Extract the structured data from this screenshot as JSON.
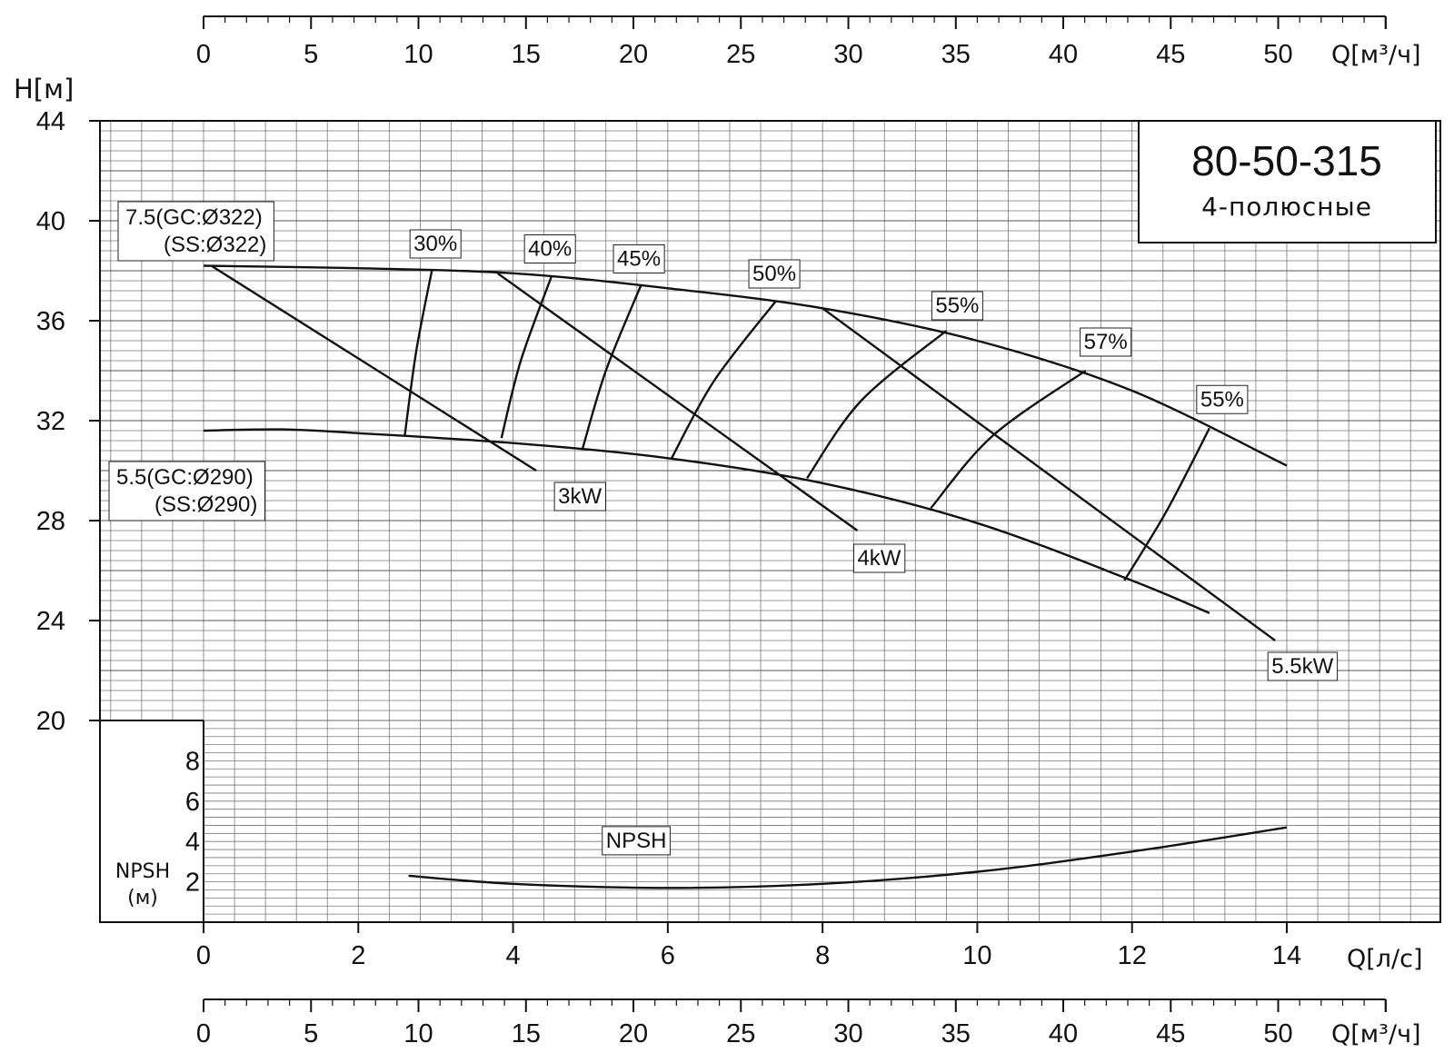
{
  "chart_data": {
    "type": "line",
    "title": "80-50-315",
    "subtitle": "4-полюсные",
    "xlabel": "Q[л/с]",
    "x_alt_label": "Q[м³/ч]",
    "ylabel": "H[м]",
    "npsh_label": "NPSH",
    "npsh_unit": "(м)",
    "xlim": [
      0,
      14
    ],
    "ylim": [
      20,
      44
    ],
    "npsh_lim": [
      0,
      10
    ],
    "x_ticks": [
      "0",
      "2",
      "4",
      "6",
      "8",
      "10",
      "12",
      "14"
    ],
    "x_alt_ticks": [
      "0",
      "5",
      "10",
      "15",
      "20",
      "25",
      "30",
      "35",
      "40",
      "45",
      "50"
    ],
    "y_ticks": [
      "20",
      "24",
      "28",
      "32",
      "36",
      "40",
      "44"
    ],
    "npsh_ticks": [
      "2",
      "4",
      "6",
      "8"
    ],
    "grid": true,
    "head_curves": [
      {
        "label_line1": "7.5(GC:Ø322)",
        "label_line2": "(SS:Ø322)",
        "x": [
          0,
          2,
          4,
          6,
          8,
          10,
          12,
          14
        ],
        "y": [
          38.2,
          38.1,
          37.9,
          37.3,
          36.5,
          35.2,
          33.2,
          30.2
        ]
      },
      {
        "label_line1": "5.5(GC:Ø290)",
        "label_line2": "(SS:Ø290)",
        "x": [
          0,
          1,
          2,
          4,
          6,
          8,
          10,
          12,
          13
        ],
        "y": [
          31.6,
          31.65,
          31.5,
          31.1,
          30.5,
          29.5,
          27.9,
          25.6,
          24.3
        ]
      }
    ],
    "power_lines": [
      {
        "label": "3kW",
        "x": [
          0.1,
          4.3
        ],
        "y": [
          38.2,
          30.0
        ]
      },
      {
        "label": "4kW",
        "x": [
          3.8,
          8.45
        ],
        "y": [
          37.9,
          27.6
        ]
      },
      {
        "label": "5.5kW",
        "x": [
          8.0,
          13.85
        ],
        "y": [
          36.5,
          23.2
        ]
      }
    ],
    "efficiency_lines": [
      {
        "label": "30%",
        "x": [
          2.6,
          2.75,
          2.95
        ],
        "y": [
          31.4,
          34.8,
          38.0
        ]
      },
      {
        "label": "40%",
        "x": [
          3.85,
          4.1,
          4.5
        ],
        "y": [
          31.3,
          34.4,
          37.8
        ]
      },
      {
        "label": "45%",
        "x": [
          4.9,
          5.2,
          5.65
        ],
        "y": [
          30.9,
          34.0,
          37.4
        ]
      },
      {
        "label": "50%",
        "x": [
          6.05,
          6.6,
          7.4
        ],
        "y": [
          30.5,
          33.6,
          36.8
        ]
      },
      {
        "label": "55%",
        "x": [
          7.8,
          8.5,
          9.6
        ],
        "y": [
          29.7,
          32.8,
          35.6
        ]
      },
      {
        "label": "57%",
        "x": [
          9.4,
          10.2,
          11.4
        ],
        "y": [
          28.5,
          31.4,
          34.0
        ]
      },
      {
        "label": "55%",
        "x": [
          11.9,
          12.45,
          13.0
        ],
        "y": [
          25.6,
          28.4,
          31.7
        ]
      }
    ],
    "npsh_curve": {
      "label": "NPSH",
      "x": [
        2.65,
        4,
        6,
        8,
        10,
        12,
        14
      ],
      "y": [
        2.3,
        1.9,
        1.7,
        1.9,
        2.5,
        3.5,
        4.7
      ]
    }
  }
}
